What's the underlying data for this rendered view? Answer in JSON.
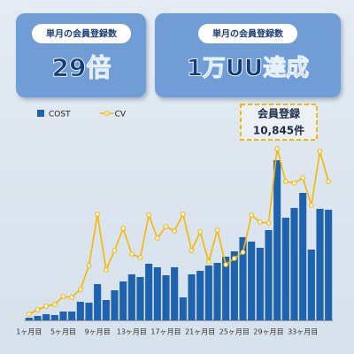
{
  "cards": [
    {
      "label": "単月の会員登録数",
      "headline": "29倍"
    },
    {
      "label": "単月の会員登録数",
      "headline": "1万UU達成"
    }
  ],
  "chart_data": {
    "type": "bar",
    "categories": [
      "1ヶ月目",
      null,
      null,
      null,
      "5ヶ月目",
      null,
      null,
      null,
      "9ヶ月目",
      null,
      null,
      null,
      "13ヶ月目",
      null,
      null,
      null,
      "17ヶ月目",
      null,
      null,
      null,
      "21ヶ月目",
      null,
      null,
      null,
      "25ヶ月目",
      null,
      null,
      null,
      "29ヶ月目",
      null,
      null,
      null,
      "33ヶ月目",
      null,
      null,
      null
    ],
    "series": [
      {
        "name": "COST",
        "color": "#1f62ad",
        "type": "bar",
        "values": [
          3,
          5,
          7,
          6,
          10,
          10,
          21,
          20,
          41,
          23,
          34,
          44,
          52,
          49,
          64,
          60,
          51,
          60,
          26,
          52,
          56,
          62,
          65,
          72,
          78,
          94,
          89,
          82,
          102,
          181,
          116,
          127,
          144,
          80,
          126,
          125
        ]
      },
      {
        "name": "CV",
        "color": "#f5b800",
        "type": "line",
        "values": [
          7,
          12,
          16,
          18,
          27,
          26,
          35,
          62,
          120,
          57,
          79,
          104,
          75,
          71,
          119,
          93,
          106,
          101,
          120,
          79,
          100,
          66,
          102,
          63,
          70,
          77,
          119,
          111,
          110,
          194,
          157,
          155,
          161,
          130,
          191,
          157
        ]
      }
    ],
    "ylim": [
      0,
      200
    ],
    "annotation": [
      "会員登録",
      "10,845件"
    ]
  }
}
